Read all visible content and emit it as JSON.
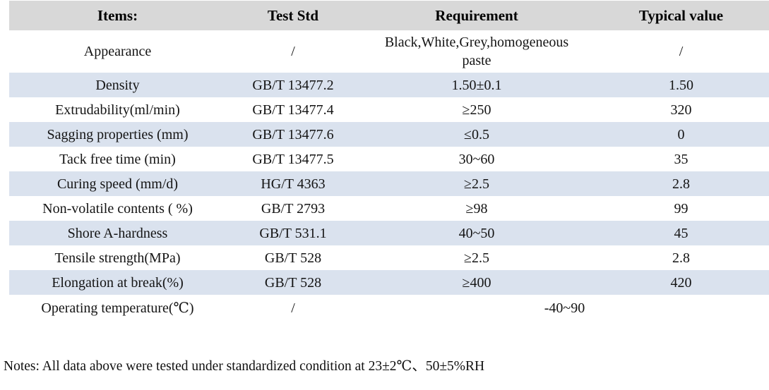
{
  "colors": {
    "header_bg": "#d8d8d8",
    "stripe_bg": "#dae2ee"
  },
  "table": {
    "headers": {
      "items": "Items:",
      "test_std": "Test Std",
      "requirement": "Requirement",
      "typical_value": "Typical value"
    },
    "rows": [
      {
        "item": "Appearance",
        "std": "/",
        "req": "Black,White,Grey,homogeneous paste",
        "typ": "/"
      },
      {
        "item": "Density",
        "std": "GB/T 13477.2",
        "req": "1.50±0.1",
        "typ": "1.50"
      },
      {
        "item": "Extrudability(ml/min)",
        "std": "GB/T 13477.4",
        "req": "≥250",
        "typ": "320"
      },
      {
        "item": "Sagging properties (mm)",
        "std": "GB/T 13477.6",
        "req": "≤0.5",
        "typ": "0"
      },
      {
        "item": "Tack free time (min)",
        "std": "GB/T 13477.5",
        "req": "30~60",
        "typ": "35"
      },
      {
        "item": "Curing speed (mm/d)",
        "std": "HG/T 4363",
        "req": "≥2.5",
        "typ": "2.8"
      },
      {
        "item": "Non-volatile contents ( %)",
        "std": "GB/T 2793",
        "req": "≥98",
        "typ": "99"
      },
      {
        "item": "Shore A-hardness",
        "std": "GB/T 531.1",
        "req": "40~50",
        "typ": "45"
      },
      {
        "item": "Tensile strength(MPa)",
        "std": "GB/T 528",
        "req": "≥2.5",
        "typ": "2.8"
      },
      {
        "item": "Elongation at break(%)",
        "std": "GB/T 528",
        "req": "≥400",
        "typ": "420"
      },
      {
        "item": "Operating temperature(℃)",
        "std": "/",
        "req": "-40~90"
      }
    ]
  },
  "notes": "Notes: All data above were tested under standardized condition at 23±2℃、50±5%RH"
}
